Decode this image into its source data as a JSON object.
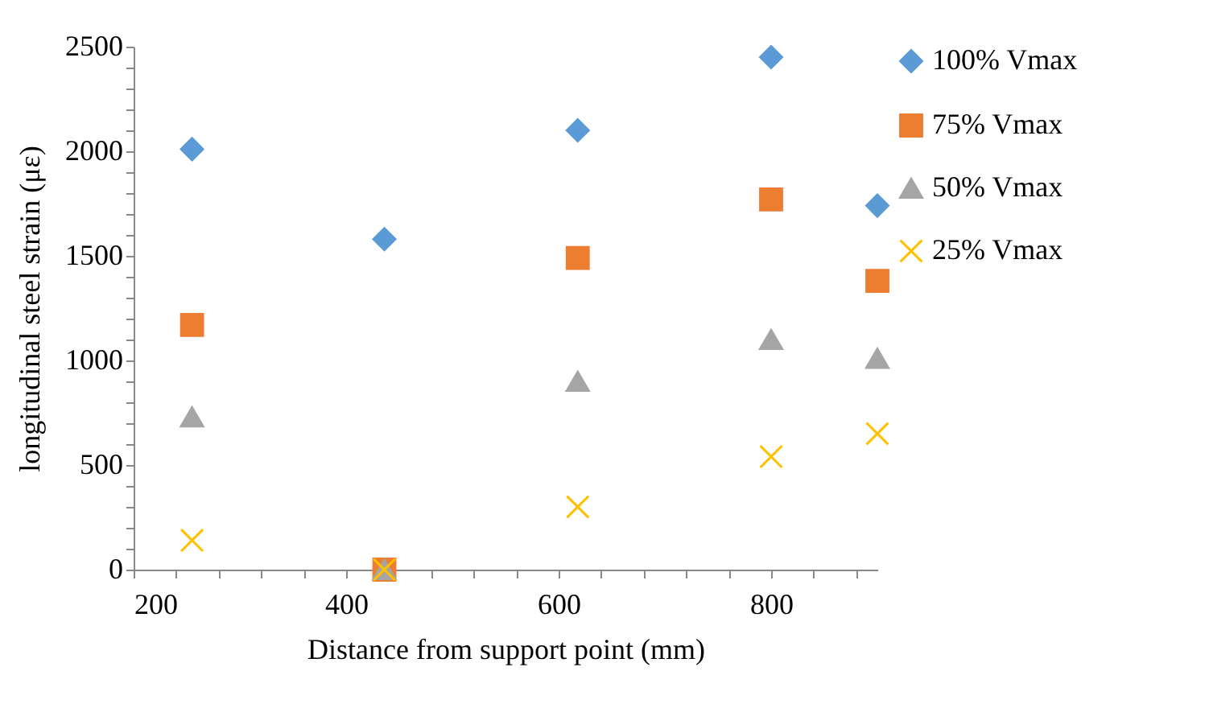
{
  "chart_data": {
    "type": "scatter",
    "xlabel": "Distance from support point (mm)",
    "ylabel": "longitudinal steel strain (με)",
    "x": [
      255,
      436,
      618,
      800,
      900
    ],
    "series": [
      {
        "name": "100% Vmax",
        "color": "#5b9bd5",
        "marker": "diamond",
        "values": [
          2010,
          1580,
          2100,
          2450,
          1740
        ]
      },
      {
        "name": "75% Vmax",
        "color": "#ed7d31",
        "marker": "square",
        "values": [
          1170,
          0,
          1490,
          1770,
          1380
        ]
      },
      {
        "name": "50% Vmax",
        "color": "#a5a5a5",
        "marker": "triangle",
        "values": [
          730,
          0,
          900,
          1100,
          1010
        ]
      },
      {
        "name": "25% Vmax",
        "color": "#ffc000",
        "marker": "cross",
        "values": [
          140,
          0,
          300,
          540,
          650
        ]
      }
    ],
    "xlim": [
      200,
      900
    ],
    "xticks": [
      200,
      {
        "value": 240,
        "label": null
      },
      {
        "value": 280,
        "label": null
      },
      {
        "value": 320,
        "label": null
      },
      {
        "value": 360,
        "label": null
      },
      400,
      {
        "value": 440,
        "label": null
      },
      {
        "value": 480,
        "label": null
      },
      {
        "value": 520,
        "label": null
      },
      {
        "value": 560,
        "label": null
      },
      600,
      {
        "value": 640,
        "label": null
      },
      {
        "value": 680,
        "label": null
      },
      {
        "value": 720,
        "label": null
      },
      {
        "value": 760,
        "label": null
      },
      800,
      {
        "value": 840,
        "label": null
      },
      {
        "value": 880,
        "label": null
      }
    ],
    "ylim": [
      0,
      2500
    ],
    "yticks": [
      0,
      {
        "value": 100,
        "label": null
      },
      {
        "value": 200,
        "label": null
      },
      {
        "value": 300,
        "label": null
      },
      {
        "value": 400,
        "label": null
      },
      500,
      {
        "value": 600,
        "label": null
      },
      {
        "value": 700,
        "label": null
      },
      {
        "value": 800,
        "label": null
      },
      {
        "value": 900,
        "label": null
      },
      1000,
      {
        "value": 1100,
        "label": null
      },
      {
        "value": 1200,
        "label": null
      },
      {
        "value": 1300,
        "label": null
      },
      {
        "value": 1400,
        "label": null
      },
      1500,
      {
        "value": 1600,
        "label": null
      },
      {
        "value": 1700,
        "label": null
      },
      {
        "value": 1800,
        "label": null
      },
      {
        "value": 1900,
        "label": null
      },
      2000,
      {
        "value": 2100,
        "label": null
      },
      {
        "value": 2200,
        "label": null
      },
      {
        "value": 2300,
        "label": null
      },
      {
        "value": 2400,
        "label": null
      },
      2500
    ],
    "legend": "right",
    "grid": false
  }
}
